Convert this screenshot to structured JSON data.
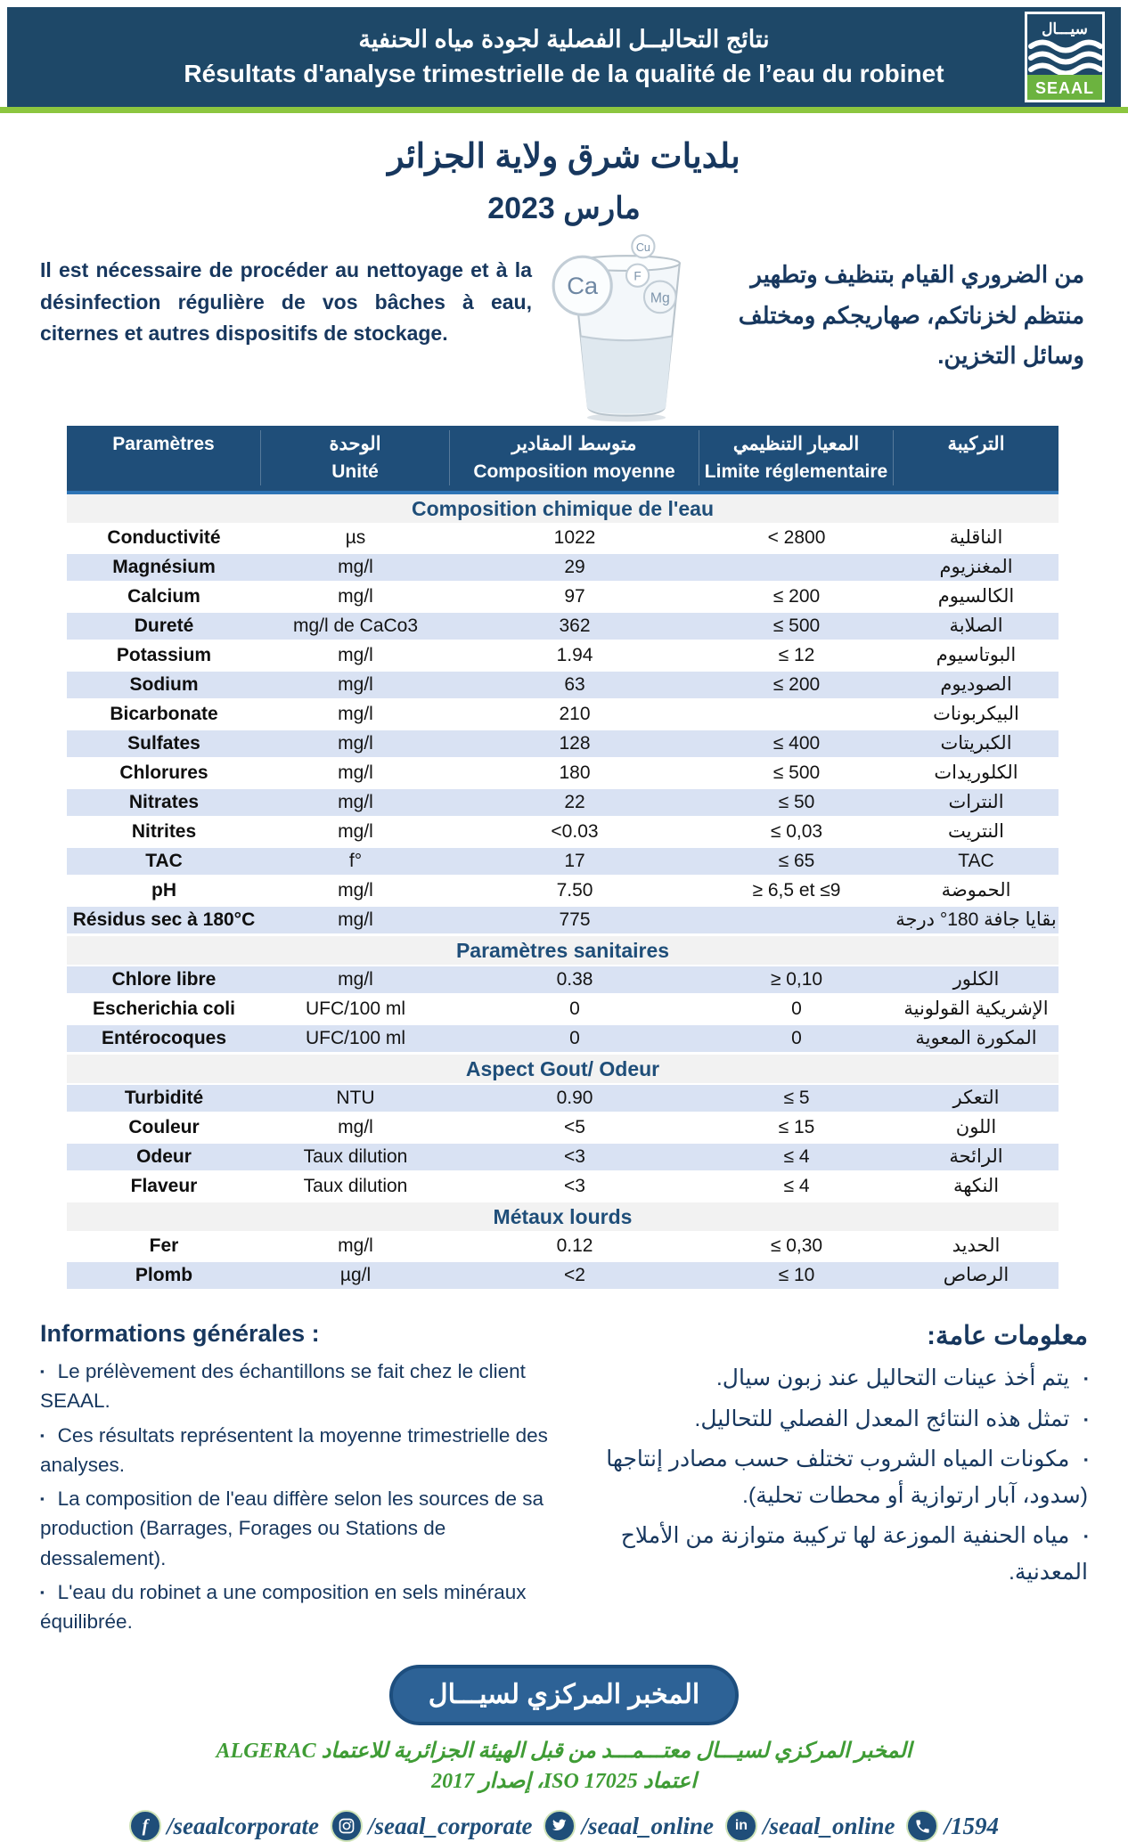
{
  "colors": {
    "header_navy": "#1E4868",
    "table_header_blue": "#1F4E79",
    "text_navy": "#17375E",
    "green_rule": "#8CC63F",
    "row_shade": "#D9E2F3",
    "section_gray": "#F2F2F2",
    "stamp_blue": "#2D6296",
    "accreditation_green": "#3F9C35",
    "logo_green": "#6CB33F"
  },
  "header": {
    "title_ar": "نتائج التحاليــل الفصلية لجودة مياه الحنفية",
    "title_fr": "Résultats d'analyse trimestrielle de la qualité de l’eau du robinet",
    "logo": {
      "arabic_name": "سيـــال",
      "latin_name": "SEAAL"
    }
  },
  "region_title_ar": "بلديات شرق ولاية الجزائر",
  "period_ar": "مارس 2023",
  "notice_fr": "Il est nécessaire de procéder au nettoyage et à la désinfection régulière de vos bâches à eau, citernes et autres dispositifs de stockage.",
  "notice_ar": "من الضروري القيام بتنظيف وتطهير منتظم لخزناتكم، صهاريجكم ومختلف وسائل التخزين.",
  "glass_minerals": [
    "Cu",
    "Ca",
    "F",
    "Mg"
  ],
  "table": {
    "headers": {
      "col1_fr": "Paramètres",
      "col2_ar": "الوحدة",
      "col2_fr": "Unité",
      "col3_ar": "متوسط المقادير",
      "col3_fr": "Composition moyenne",
      "col4_ar": "المعيار التنظيمي",
      "col4_fr": "Limite réglementaire",
      "col5_ar": "التركيبة"
    },
    "rows": [
      {
        "type": "section",
        "label": "Composition chimique de l'eau"
      },
      {
        "type": "row",
        "param": "Conductivité",
        "unit": "µs",
        "value": "1022",
        "limit": "< 2800",
        "ar": "الناقلية",
        "shaded": false
      },
      {
        "type": "row",
        "param": "Magnésium",
        "unit": "mg/l",
        "value": "29",
        "limit": "",
        "ar": "المغنزيوم",
        "shaded": true
      },
      {
        "type": "row",
        "param": "Calcium",
        "unit": "mg/l",
        "value": "97",
        "limit": "≤ 200",
        "ar": "الكالسيوم",
        "shaded": false
      },
      {
        "type": "row",
        "param": "Dureté",
        "unit": "mg/l de CaCo3",
        "value": "362",
        "limit": "≤ 500",
        "ar": "الصلابة",
        "shaded": true
      },
      {
        "type": "row",
        "param": "Potassium",
        "unit": "mg/l",
        "value": "1.94",
        "limit": "≤ 12",
        "ar": "البوتاسيوم",
        "shaded": false
      },
      {
        "type": "row",
        "param": "Sodium",
        "unit": "mg/l",
        "value": "63",
        "limit": "≤ 200",
        "ar": "الصوديوم",
        "shaded": true
      },
      {
        "type": "row",
        "param": "Bicarbonate",
        "unit": "mg/l",
        "value": "210",
        "limit": "",
        "ar": "البيكربونات",
        "shaded": false
      },
      {
        "type": "row",
        "param": "Sulfates",
        "unit": "mg/l",
        "value": "128",
        "limit": "≤ 400",
        "ar": "الكبريتات",
        "shaded": true
      },
      {
        "type": "row",
        "param": "Chlorures",
        "unit": "mg/l",
        "value": "180",
        "limit": "≤ 500",
        "ar": "الكلوريدات",
        "shaded": false
      },
      {
        "type": "row",
        "param": "Nitrates",
        "unit": "mg/l",
        "value": "22",
        "limit": "≤ 50",
        "ar": "النترات",
        "shaded": true
      },
      {
        "type": "row",
        "param": "Nitrites",
        "unit": "mg/l",
        "value": "<0.03",
        "limit": "≤ 0,03",
        "ar": "النتريت",
        "shaded": false
      },
      {
        "type": "row",
        "param": "TAC",
        "unit": "f°",
        "value": "17",
        "limit": "≤ 65",
        "ar": "TAC",
        "shaded": true
      },
      {
        "type": "row",
        "param": "pH",
        "unit": "mg/l",
        "value": "7.50",
        "limit": "≥ 6,5 et ≤9",
        "ar": "الحموضة",
        "shaded": false
      },
      {
        "type": "row",
        "param": "Résidus sec à 180°C",
        "unit": "mg/l",
        "value": "775",
        "limit": "",
        "ar": "بقايا جافة 180° درجة",
        "shaded": true
      },
      {
        "type": "section",
        "label": "Paramètres sanitaires"
      },
      {
        "type": "row",
        "param": "Chlore libre",
        "unit": "mg/l",
        "value": "0.38",
        "limit": "≥ 0,10",
        "ar": "الكلور",
        "shaded": true
      },
      {
        "type": "row",
        "param": "Escherichia coli",
        "unit": "UFC/100 ml",
        "value": "0",
        "limit": "0",
        "ar": "الإشريكية القولونية",
        "shaded": false
      },
      {
        "type": "row",
        "param": "Entérocoques",
        "unit": "UFC/100 ml",
        "value": "0",
        "limit": "0",
        "ar": "المكورة المعوية",
        "shaded": true
      },
      {
        "type": "section",
        "label": "Aspect Gout/ Odeur"
      },
      {
        "type": "row",
        "param": "Turbidité",
        "unit": "NTU",
        "value": "0.90",
        "limit": "≤ 5",
        "ar": "التعكر",
        "shaded": true
      },
      {
        "type": "row",
        "param": "Couleur",
        "unit": "mg/l",
        "value": "<5",
        "limit": "≤ 15",
        "ar": "اللون",
        "shaded": false
      },
      {
        "type": "row",
        "param": "Odeur",
        "unit": "Taux dilution",
        "value": "<3",
        "limit": "≤ 4",
        "ar": "الرائحة",
        "shaded": true
      },
      {
        "type": "row",
        "param": "Flaveur",
        "unit": "Taux dilution",
        "value": "<3",
        "limit": "≤ 4",
        "ar": "النكهة",
        "shaded": false
      },
      {
        "type": "section",
        "label": "Métaux lourds"
      },
      {
        "type": "row",
        "param": "Fer",
        "unit": "mg/l",
        "value": "0.12",
        "limit": "≤ 0,30",
        "ar": "الحديد",
        "shaded": false
      },
      {
        "type": "row",
        "param": "Plomb",
        "unit": "µg/l",
        "value": "<2",
        "limit": "≤ 10",
        "ar": "الرصاص",
        "shaded": true
      }
    ]
  },
  "info_fr": {
    "title": "Informations générales :",
    "bullets": [
      "Le prélèvement des échantillons se fait chez le client SEAAL.",
      "Ces résultats représentent la moyenne trimestrielle des analyses.",
      "La composition de l'eau diffère selon les sources de sa production (Barrages, Forages ou Stations de dessalement).",
      "L'eau du robinet a une composition en sels minéraux équilibrée."
    ]
  },
  "info_ar": {
    "title": "معلومات عامة:",
    "bullets": [
      "يتم أخذ عينات التحاليل عند زبون سيال.",
      "تمثل هذه النتائج المعدل الفصلي للتحاليل.",
      "مكونات المياه الشروب تختلف حسب مصادر إنتاجها (سدود، آبار ارتوازية أو محطات تحلية).",
      "مياه الحنفية الموزعة لها تركيبة متوازنة من الأملاح المعدنية."
    ]
  },
  "stamp_ar": "المخبر المركزي لسيـــال",
  "accreditation": {
    "line1": "المخبر المركزي لسيـــال معتـــمـــد من قبل الهيئة الجزائرية للاعتماد ALGERAC",
    "line2": "اعتماد ISO 17025، إصدار 2017"
  },
  "footer": {
    "links": [
      {
        "icon": "facebook-icon",
        "label": "/seaalcorporate"
      },
      {
        "icon": "instagram-icon",
        "label": "/seaal_corporate"
      },
      {
        "icon": "twitter-icon",
        "label": "/seaal_online"
      },
      {
        "icon": "linkedin-icon",
        "label": "/seaal_online"
      },
      {
        "icon": "phone-icon",
        "label": "/1594"
      }
    ]
  }
}
